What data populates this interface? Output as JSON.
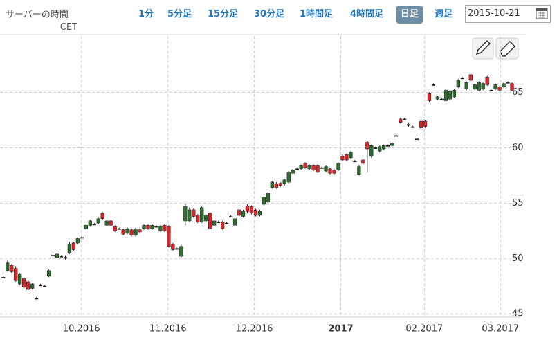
{
  "toolbar": {
    "server_time_label": "サーバーの時間",
    "timezone": "CET",
    "buttons": [
      "1分",
      "5分足",
      "15分足",
      "30分足",
      "1時間足",
      "4時間足",
      "日足",
      "週足"
    ],
    "date": "2015-10-21"
  },
  "chart_data": {
    "type": "candlestick",
    "up_color": "#2e6b2e",
    "down_color": "#d9262a",
    "grid": true,
    "ylim": [
      44.7,
      70.1
    ],
    "yticks": [
      45,
      50,
      55,
      60,
      65
    ],
    "xlim": [
      -0.8,
      125
    ],
    "xticks": [
      {
        "value": 18.9,
        "label": "10.2016"
      },
      {
        "value": 39.8,
        "label": "11.2016"
      },
      {
        "value": 60.7,
        "label": "12.2016"
      },
      {
        "value": 81.6,
        "label": "2017"
      },
      {
        "value": 101.8,
        "label": "02.2017"
      },
      {
        "value": 120.2,
        "label": "03.2017"
      }
    ],
    "open": [
      48.3,
      48.9,
      49.4,
      49.1,
      47.7,
      48.2,
      47.9,
      47.3,
      46.4,
      47.6,
      47.5,
      48.4,
      50.3,
      50.1,
      50.2,
      50.1,
      50.5,
      51.4,
      51.4,
      51.9,
      52.7,
      53.0,
      53.1,
      53.2,
      54.1,
      53.0,
      53.4,
      52.9,
      52.7,
      52.6,
      52.3,
      52.6,
      52.1,
      52.6,
      52.7,
      53.0,
      52.7,
      52.9,
      52.5,
      53.0,
      52.9,
      51.3,
      50.9,
      50.2,
      53.4,
      53.4,
      54.4,
      53.9,
      53.3,
      53.4,
      54.1,
      53.0,
      53.3,
      53.3,
      53.2,
      53.8,
      53.0,
      54.4,
      53.8,
      54.75,
      54.7,
      54.4,
      53.9,
      54.9,
      55.1,
      56.4,
      56.75,
      56.8,
      56.75,
      56.9,
      57.7,
      58.1,
      58.1,
      58.6,
      58.1,
      58.4,
      58.4,
      58.2,
      57.9,
      58.1,
      58.0,
      58.0,
      59.25,
      59.4,
      59.1,
      58.8,
      57.6,
      58.9,
      60.5,
      59.25,
      60.0,
      59.7,
      59.9,
      60.2,
      60.2,
      61.1,
      62.6,
      62.6,
      62.1,
      61.9,
      60.8,
      62.4,
      62.4,
      64.9,
      65.7,
      64.4,
      64.4,
      64.25,
      64.4,
      64.6,
      65.5,
      66.3,
      65.3,
      66.6,
      65.3,
      65.2,
      65.3,
      66.4,
      65.2,
      65.3,
      65.5,
      65.5,
      65.9,
      65.8
    ],
    "high": [
      48.4,
      49.8,
      49.5,
      49.3,
      48.7,
      48.3,
      48.0,
      47.8,
      46.5,
      47.7,
      47.6,
      49.0,
      50.4,
      50.5,
      50.3,
      50.3,
      51.5,
      51.5,
      51.9,
      52.0,
      53.1,
      53.5,
      53.2,
      53.7,
      54.2,
      53.5,
      53.5,
      53.0,
      52.8,
      52.7,
      52.8,
      52.7,
      52.8,
      52.7,
      53.1,
      53.1,
      53.1,
      53.0,
      53.0,
      53.1,
      53.0,
      51.4,
      51.0,
      51.3,
      54.9,
      54.6,
      54.5,
      54.0,
      54.7,
      54.0,
      54.2,
      53.5,
      53.4,
      53.4,
      53.3,
      53.9,
      53.7,
      54.5,
      54.4,
      54.9,
      54.8,
      54.5,
      54.4,
      55.6,
      56.0,
      57.0,
      56.9,
      56.9,
      57.2,
      57.9,
      58.1,
      58.2,
      58.5,
      58.7,
      58.5,
      58.5,
      58.5,
      58.3,
      58.4,
      58.2,
      58.1,
      58.7,
      59.4,
      59.5,
      59.7,
      58.9,
      58.4,
      59.0,
      60.6,
      60.3,
      60.1,
      60.2,
      60.3,
      60.3,
      60.5,
      61.2,
      62.7,
      62.7,
      62.3,
      62.0,
      60.9,
      62.5,
      62.5,
      65.0,
      65.8,
      64.7,
      64.5,
      65.3,
      65.2,
      65.3,
      66.2,
      66.4,
      66.0,
      66.7,
      65.8,
      66.0,
      65.9,
      66.5,
      65.3,
      65.8,
      65.6,
      65.9,
      66.0,
      65.9
    ],
    "low": [
      48.2,
      48.8,
      48.7,
      47.9,
      47.6,
      47.3,
      47.1,
      47.2,
      46.3,
      47.5,
      47.4,
      48.3,
      50.2,
      50.0,
      50.1,
      49.9,
      50.4,
      50.7,
      51.3,
      51.7,
      52.6,
      52.9,
      53.0,
      53.1,
      53.5,
      52.9,
      52.9,
      52.4,
      52.6,
      52.1,
      52.2,
      52.0,
      52.0,
      52.3,
      52.6,
      52.6,
      52.6,
      52.8,
      52.4,
      52.4,
      51.0,
      50.7,
      50.8,
      50.1,
      53.0,
      53.3,
      53.7,
      53.2,
      53.2,
      53.3,
      52.6,
      52.9,
      53.2,
      52.6,
      53.1,
      53.7,
      52.9,
      53.8,
      53.7,
      54.1,
      54.0,
      53.8,
      53.8,
      54.8,
      55.0,
      56.3,
      56.3,
      56.5,
      56.6,
      56.8,
      57.6,
      58.0,
      58.0,
      58.1,
      58.0,
      57.9,
      57.7,
      58.1,
      57.8,
      57.6,
      57.6,
      57.9,
      58.8,
      58.8,
      59.0,
      58.7,
      57.5,
      58.5,
      57.8,
      59.1,
      59.9,
      59.6,
      59.8,
      60.1,
      60.1,
      61.0,
      62.2,
      62.5,
      61.9,
      61.8,
      60.7,
      61.5,
      61.8,
      64.1,
      65.6,
      64.3,
      64.3,
      64.1,
      64.3,
      64.5,
      65.4,
      66.2,
      65.2,
      66.0,
      65.2,
      65.1,
      65.2,
      65.6,
      65.1,
      65.2,
      65.1,
      65.4,
      65.8,
      65.1
    ],
    "close": [
      48.3,
      49.6,
      48.8,
      48.0,
      48.6,
      47.4,
      47.2,
      47.7,
      46.4,
      47.6,
      47.5,
      48.9,
      50.3,
      50.4,
      50.2,
      50.1,
      51.3,
      50.8,
      51.8,
      51.9,
      53.0,
      53.4,
      53.1,
      53.6,
      53.6,
      53.4,
      53.0,
      52.5,
      52.7,
      52.2,
      52.7,
      52.1,
      52.7,
      52.4,
      53.0,
      52.7,
      53.0,
      52.9,
      52.9,
      52.5,
      51.1,
      50.8,
      50.9,
      51.1,
      54.7,
      54.4,
      53.8,
      53.3,
      54.6,
      53.9,
      52.7,
      53.4,
      53.3,
      52.7,
      53.2,
      53.8,
      53.6,
      53.9,
      54.25,
      54.25,
      54.1,
      53.9,
      54.25,
      55.5,
      55.9,
      56.9,
      56.4,
      56.6,
      57.1,
      57.8,
      58.0,
      58.1,
      58.4,
      58.2,
      58.4,
      58.0,
      57.8,
      58.2,
      58.3,
      57.7,
      57.7,
      58.6,
      58.9,
      58.9,
      59.6,
      58.8,
      58.3,
      58.6,
      59.9,
      60.2,
      60.0,
      60.1,
      60.2,
      60.2,
      60.4,
      61.1,
      62.3,
      62.6,
      62.1,
      61.9,
      60.8,
      61.8,
      61.9,
      64.25,
      65.7,
      64.6,
      64.4,
      65.2,
      65.1,
      65.2,
      66.1,
      66.3,
      65.9,
      66.1,
      65.7,
      65.9,
      65.8,
      65.7,
      65.2,
      65.7,
      65.2,
      65.8,
      65.9,
      65.2
    ]
  }
}
